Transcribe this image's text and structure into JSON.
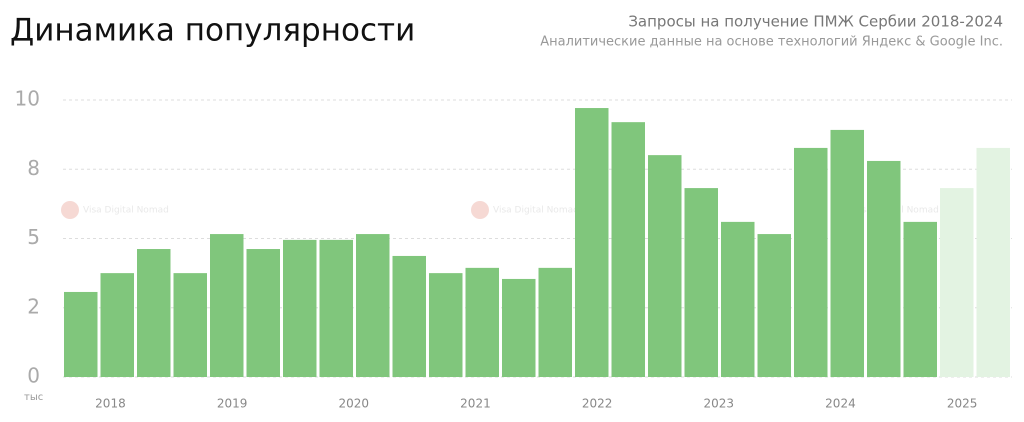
{
  "chart_data": {
    "type": "bar",
    "title": "Динамика популярности",
    "subtitle": "Запросы на получение ПМЖ Сербии 2018-2024",
    "source": "Аналитические данные на основе технологий Яндекс & Google Inc.",
    "unit_label": "тыс",
    "watermark": "Visa Digital Nomad",
    "year_labels": [
      "2018",
      "2019",
      "2020",
      "2021",
      "2022",
      "2023",
      "2024",
      "2025"
    ],
    "series": [
      {
        "color": "#80c67c",
        "values": [
          3.07,
          3.75,
          4.62,
          3.75,
          5.16,
          4.62,
          4.95,
          4.95,
          5.16,
          4.37,
          3.75,
          3.94,
          3.54,
          3.94,
          9.71,
          9.2,
          8.01,
          6.82,
          5.6,
          5.16,
          8.27,
          8.92,
          7.8,
          5.6,
          null,
          null
        ]
      },
      {
        "color": "#e3f3e2",
        "values": [
          null,
          null,
          null,
          null,
          null,
          null,
          null,
          null,
          null,
          null,
          null,
          null,
          null,
          null,
          null,
          null,
          null,
          null,
          null,
          null,
          null,
          null,
          null,
          null,
          6.82,
          8.27
        ]
      }
    ],
    "ylim": [
      0,
      10
    ],
    "yticks": [
      0,
      {
        "value": 2.5,
        "label": "2"
      },
      5,
      {
        "value": 7.5,
        "label": "8"
      },
      10
    ],
    "grid": true
  }
}
